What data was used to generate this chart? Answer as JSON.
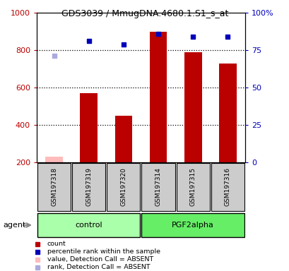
{
  "title": "GDS3039 / MmugDNA.4680.1.S1_s_at",
  "samples": [
    "GSM197318",
    "GSM197319",
    "GSM197320",
    "GSM197314",
    "GSM197315",
    "GSM197316"
  ],
  "counts": [
    230,
    570,
    450,
    900,
    790,
    730
  ],
  "ranks": [
    71,
    81,
    79,
    86,
    84,
    84
  ],
  "absent_count": [
    true,
    false,
    false,
    false,
    false,
    false
  ],
  "absent_rank": [
    true,
    false,
    false,
    false,
    false,
    false
  ],
  "ylim_left": [
    200,
    1000
  ],
  "ylim_right": [
    0,
    100
  ],
  "yticks_left": [
    200,
    400,
    600,
    800,
    1000
  ],
  "yticks_right": [
    0,
    25,
    50,
    75,
    100
  ],
  "ytick_labels_right": [
    "0",
    "25",
    "50",
    "75",
    "100%"
  ],
  "bar_color_present": "#bb0000",
  "bar_color_absent": "#ffbbbb",
  "rank_color_present": "#0000bb",
  "rank_color_absent": "#aaaadd",
  "group_box_colors": [
    "#aaffaa",
    "#66ee66"
  ],
  "sample_box_color": "#cccccc",
  "bar_width": 0.5,
  "agent_label": "agent",
  "legend_items": [
    {
      "label": "count",
      "color": "#bb0000"
    },
    {
      "label": "percentile rank within the sample",
      "color": "#0000bb"
    },
    {
      "label": "value, Detection Call = ABSENT",
      "color": "#ffbbbb"
    },
    {
      "label": "rank, Detection Call = ABSENT",
      "color": "#aaaadd"
    }
  ]
}
